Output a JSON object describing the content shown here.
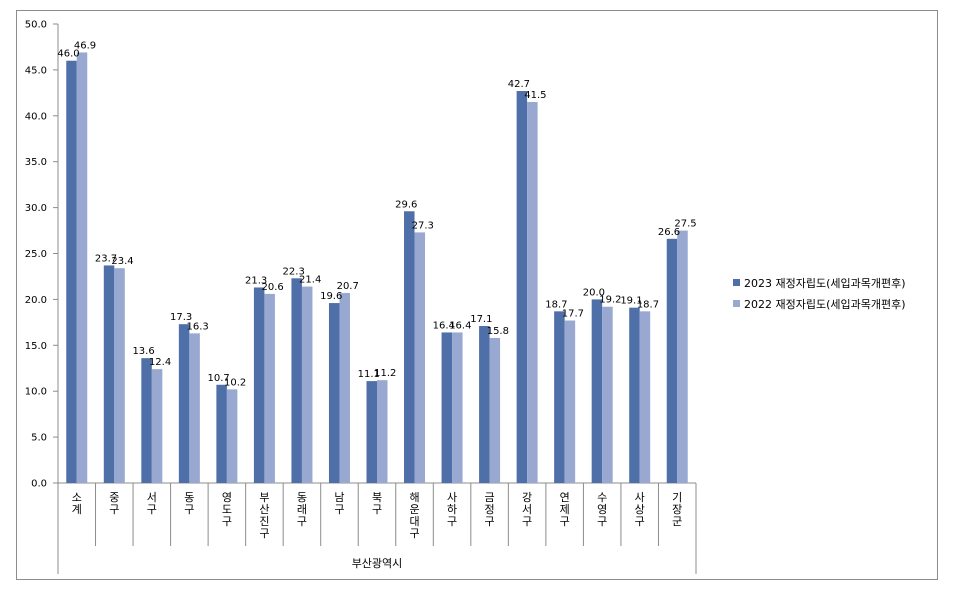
{
  "chart_data": {
    "type": "bar",
    "group_label": "부산광역시",
    "categories": [
      "소계",
      "중구",
      "서구",
      "동구",
      "영도구",
      "부산진구",
      "동래구",
      "남구",
      "북구",
      "해운대구",
      "사하구",
      "금정구",
      "강서구",
      "연제구",
      "수영구",
      "사상구",
      "기장군"
    ],
    "series": [
      {
        "name": "2023 재정자립도(세입과목개편후)",
        "color": "#4f6fa8",
        "values": [
          46.0,
          23.7,
          13.6,
          17.3,
          10.7,
          21.3,
          22.3,
          19.6,
          11.1,
          29.6,
          16.4,
          17.1,
          42.7,
          18.7,
          20.0,
          19.1,
          26.6
        ],
        "labels": [
          "46.0",
          "23.7",
          "13.6",
          "17.3",
          "10.7",
          "21.3",
          "22.3",
          "19.6",
          "11.1",
          "29.6",
          "16.4",
          "17.1",
          "42.7",
          "18.7",
          "20.0",
          "19.1",
          "26.6"
        ]
      },
      {
        "name": "2022 재정자립도(세입과목개편후)",
        "color": "#98a8d0",
        "values": [
          46.9,
          23.4,
          12.4,
          16.3,
          10.2,
          20.6,
          21.4,
          20.7,
          11.2,
          27.3,
          16.4,
          15.8,
          41.5,
          17.7,
          19.2,
          18.7,
          27.5
        ],
        "labels": [
          "46.9",
          "23.4",
          "12.4",
          "16.3",
          "10.2",
          "20.6",
          "21.4",
          "20.7",
          "11.2",
          "27.3",
          "16.4",
          "15.8",
          "41.5",
          "17.7",
          "19.2",
          "18.7",
          "27.5"
        ]
      }
    ],
    "yticks": [
      "0.0",
      "5.0",
      "10.0",
      "15.0",
      "20.0",
      "25.0",
      "30.0",
      "35.0",
      "40.0",
      "45.0",
      "50.0"
    ],
    "ylim": [
      0,
      50
    ],
    "grid": false,
    "legend": "right"
  }
}
